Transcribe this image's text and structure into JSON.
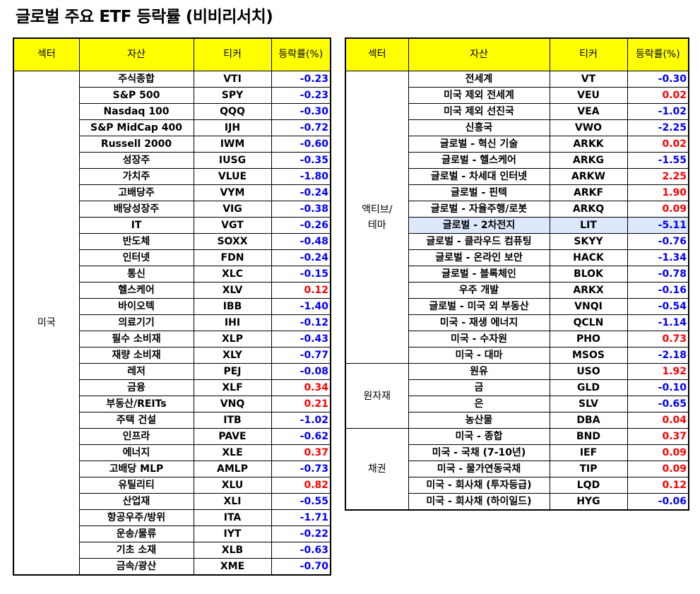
{
  "title": "글로벌 주요 ETF 등락률 (비비리서치)",
  "headers": {
    "sector": "섹터",
    "asset": "자산",
    "ticker": "티커",
    "change": "등락률(%)"
  },
  "colors": {
    "header_bg": "#ffff00",
    "negative": "#0000ff",
    "positive": "#ff0000",
    "highlight": "#dde8fb"
  },
  "left_groups": [
    {
      "sector": "미국",
      "rows": [
        {
          "asset": "주식종합",
          "ticker": "VTI",
          "change": "-0.23"
        },
        {
          "asset": "S&P 500",
          "ticker": "SPY",
          "change": "-0.23"
        },
        {
          "asset": "Nasdaq 100",
          "ticker": "QQQ",
          "change": "-0.30"
        },
        {
          "asset": "S&P MidCap 400",
          "ticker": "IJH",
          "change": "-0.72"
        },
        {
          "asset": "Russell 2000",
          "ticker": "IWM",
          "change": "-0.60"
        },
        {
          "asset": "성장주",
          "ticker": "IUSG",
          "change": "-0.35"
        },
        {
          "asset": "가치주",
          "ticker": "VLUE",
          "change": "-1.80"
        },
        {
          "asset": "고배당주",
          "ticker": "VYM",
          "change": "-0.24"
        },
        {
          "asset": "배당성장주",
          "ticker": "VIG",
          "change": "-0.38"
        },
        {
          "asset": "IT",
          "ticker": "VGT",
          "change": "-0.26"
        },
        {
          "asset": "반도체",
          "ticker": "SOXX",
          "change": "-0.48"
        },
        {
          "asset": "인터넷",
          "ticker": "FDN",
          "change": "-0.24"
        },
        {
          "asset": "통신",
          "ticker": "XLC",
          "change": "-0.15"
        },
        {
          "asset": "헬스케어",
          "ticker": "XLV",
          "change": "0.12"
        },
        {
          "asset": "바이오텍",
          "ticker": "IBB",
          "change": "-1.40"
        },
        {
          "asset": "의료기기",
          "ticker": "IHI",
          "change": "-0.12"
        },
        {
          "asset": "필수 소비재",
          "ticker": "XLP",
          "change": "-0.43"
        },
        {
          "asset": "재량 소비재",
          "ticker": "XLY",
          "change": "-0.77"
        },
        {
          "asset": "레저",
          "ticker": "PEJ",
          "change": "-0.08"
        },
        {
          "asset": "금융",
          "ticker": "XLF",
          "change": "0.34"
        },
        {
          "asset": "부동산/REITs",
          "ticker": "VNQ",
          "change": "0.21"
        },
        {
          "asset": "주택 건설",
          "ticker": "ITB",
          "change": "-1.02"
        },
        {
          "asset": "인프라",
          "ticker": "PAVE",
          "change": "-0.62"
        },
        {
          "asset": "에너지",
          "ticker": "XLE",
          "change": "0.37"
        },
        {
          "asset": "고배당 MLP",
          "ticker": "AMLP",
          "change": "-0.73"
        },
        {
          "asset": "유틸리티",
          "ticker": "XLU",
          "change": "0.82"
        },
        {
          "asset": "산업재",
          "ticker": "XLI",
          "change": "-0.55"
        },
        {
          "asset": "항공우주/방위",
          "ticker": "ITA",
          "change": "-1.71"
        },
        {
          "asset": "운송/물류",
          "ticker": "IYT",
          "change": "-0.22"
        },
        {
          "asset": "기초 소재",
          "ticker": "XLB",
          "change": "-0.63"
        },
        {
          "asset": "금속/광산",
          "ticker": "XME",
          "change": "-0.70"
        }
      ]
    }
  ],
  "right_groups": [
    {
      "sector": "액티브/\n테마",
      "rows": [
        {
          "asset": "전세계",
          "ticker": "VT",
          "change": "-0.30"
        },
        {
          "asset": "미국 제외 전세계",
          "ticker": "VEU",
          "change": "0.02"
        },
        {
          "asset": "미국 제외 선진국",
          "ticker": "VEA",
          "change": "-1.02"
        },
        {
          "asset": "신흥국",
          "ticker": "VWO",
          "change": "-2.25"
        },
        {
          "asset": "글로벌 - 혁신 기술",
          "ticker": "ARKK",
          "change": "0.02"
        },
        {
          "asset": "글로벌 - 헬스케어",
          "ticker": "ARKG",
          "change": "-1.55"
        },
        {
          "asset": "글로벌 - 차세대 인터넷",
          "ticker": "ARKW",
          "change": "2.25"
        },
        {
          "asset": "글로벌 - 핀텍",
          "ticker": "ARKF",
          "change": "1.90"
        },
        {
          "asset": "글로벌 - 자율주행/로봇",
          "ticker": "ARKQ",
          "change": "0.09"
        },
        {
          "asset": "글로벌 - 2차전지",
          "ticker": "LIT",
          "change": "-5.11",
          "highlight": true
        },
        {
          "asset": "글로벌 - 클라우드 컴퓨팅",
          "ticker": "SKYY",
          "change": "-0.76"
        },
        {
          "asset": "글로벌 - 온라인 보안",
          "ticker": "HACK",
          "change": "-1.34"
        },
        {
          "asset": "글로벌 - 블록체인",
          "ticker": "BLOK",
          "change": "-0.78"
        },
        {
          "asset": "우주 개발",
          "ticker": "ARKX",
          "change": "-0.16"
        },
        {
          "asset": "글로벌 - 미국 외 부동산",
          "ticker": "VNQI",
          "change": "-0.54"
        },
        {
          "asset": "미국 - 재생 에너지",
          "ticker": "QCLN",
          "change": "-1.14"
        },
        {
          "asset": "미국 - 수자원",
          "ticker": "PHO",
          "change": "0.73"
        },
        {
          "asset": "미국 - 대마",
          "ticker": "MSOS",
          "change": "-2.18"
        }
      ]
    },
    {
      "sector": "원자재",
      "rows": [
        {
          "asset": "원유",
          "ticker": "USO",
          "change": "1.92"
        },
        {
          "asset": "금",
          "ticker": "GLD",
          "change": "-0.10"
        },
        {
          "asset": "은",
          "ticker": "SLV",
          "change": "-0.65"
        },
        {
          "asset": "농산물",
          "ticker": "DBA",
          "change": "0.04"
        }
      ]
    },
    {
      "sector": "채권",
      "rows": [
        {
          "asset": "미국 - 종합",
          "ticker": "BND",
          "change": "0.37"
        },
        {
          "asset": "미국 - 국채 (7-10년)",
          "ticker": "IEF",
          "change": "0.09"
        },
        {
          "asset": "미국 - 물가연동국채",
          "ticker": "TIP",
          "change": "0.09"
        },
        {
          "asset": "미국 - 회사채 (투자등급)",
          "ticker": "LQD",
          "change": "0.12"
        },
        {
          "asset": "미국 - 회사채 (하이일드)",
          "ticker": "HYG",
          "change": "-0.06"
        }
      ]
    }
  ]
}
